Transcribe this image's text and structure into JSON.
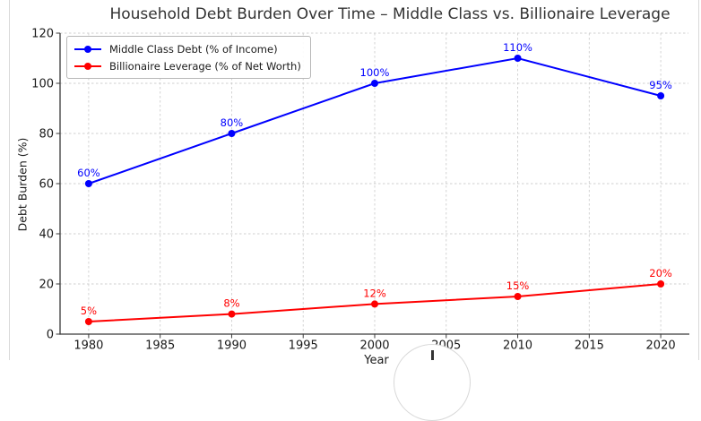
{
  "page": {
    "background": "#ffffff",
    "border_color": "#d9d9d9"
  },
  "chart_data": {
    "type": "line",
    "title": "Household Debt Burden Over Time – Middle Class vs. Billionaire Leverage",
    "xlabel": "Year",
    "ylabel": "Debt Burden (%)",
    "x": [
      1980,
      1990,
      2000,
      2010,
      2020
    ],
    "x_ticks": [
      1980,
      1985,
      1990,
      1995,
      2000,
      2005,
      2010,
      2015,
      2020
    ],
    "y_ticks": [
      0,
      20,
      40,
      60,
      80,
      100,
      120
    ],
    "xlim": [
      1978,
      2022
    ],
    "ylim": [
      0,
      120
    ],
    "grid": true,
    "grid_style": "dashed",
    "legend_position": "upper left",
    "series": [
      {
        "name": "Middle Class Debt (% of Income)",
        "color": "#0000ff",
        "marker": "circle",
        "values": [
          60,
          80,
          100,
          110,
          95
        ],
        "point_labels": [
          "60%",
          "80%",
          "100%",
          "110%",
          "95%"
        ]
      },
      {
        "name": "Billionaire Leverage (% of Net Worth)",
        "color": "#ff0000",
        "marker": "circle",
        "values": [
          5,
          8,
          12,
          15,
          20
        ],
        "point_labels": [
          "5%",
          "8%",
          "12%",
          "15%",
          "20%"
        ]
      }
    ]
  }
}
